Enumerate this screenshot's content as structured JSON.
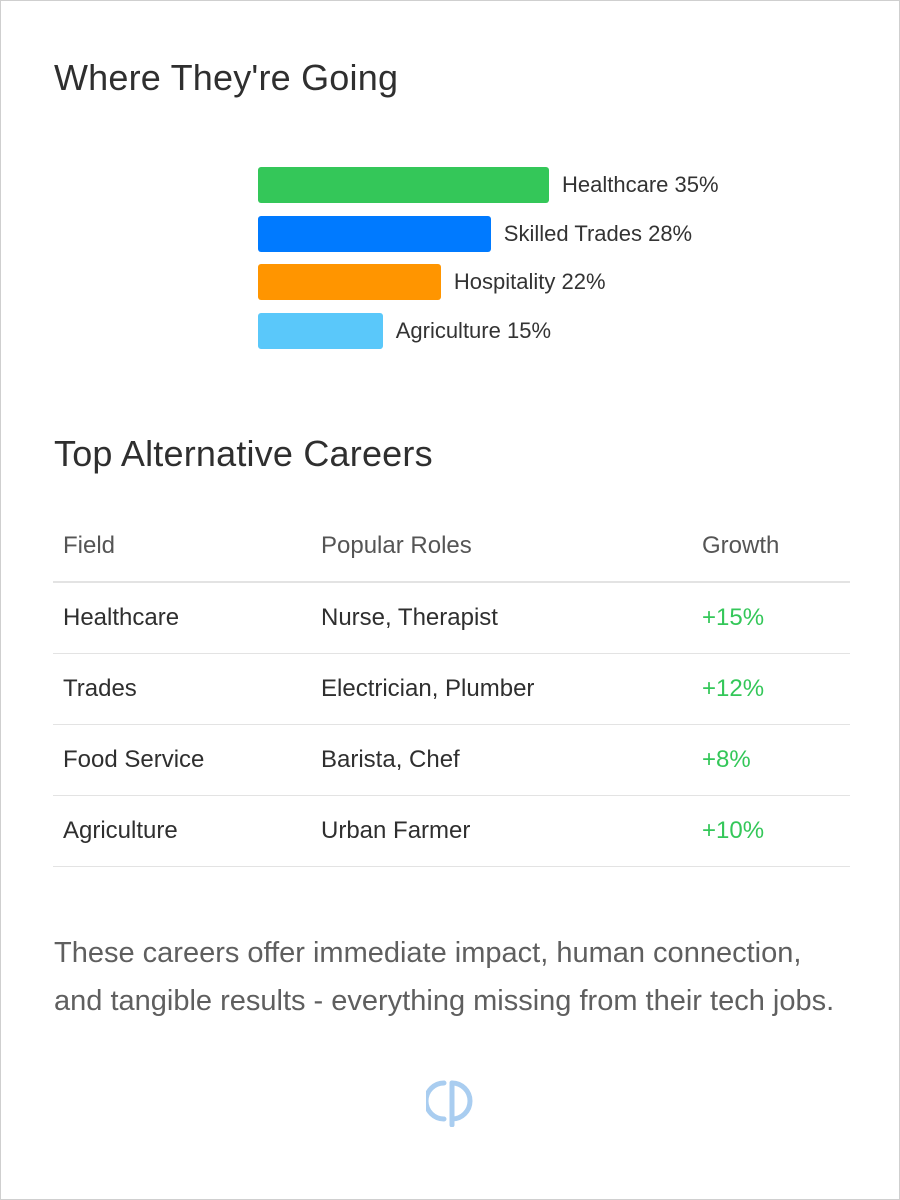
{
  "sections": {
    "destinations_title": "Where They're Going",
    "careers_title": "Top Alternative Careers"
  },
  "chart_data": {
    "type": "bar",
    "orientation": "horizontal",
    "title": "",
    "xlabel": "",
    "ylabel": "",
    "xlim": [
      0,
      35
    ],
    "grid": false,
    "categories": [
      "Healthcare",
      "Skilled Trades",
      "Hospitality",
      "Agriculture"
    ],
    "values": [
      35,
      28,
      22,
      15
    ],
    "labels": [
      "Healthcare 35%",
      "Skilled Trades 28%",
      "Hospitality 22%",
      "Agriculture 15%"
    ],
    "colors": [
      "#34c759",
      "#007aff",
      "#ff9500",
      "#5ac8fa"
    ]
  },
  "table": {
    "headers": [
      "Field",
      "Popular Roles",
      "Growth"
    ],
    "rows": [
      [
        "Healthcare",
        "Nurse, Therapist",
        "+15%"
      ],
      [
        "Trades",
        "Electrician, Plumber",
        "+12%"
      ],
      [
        "Food Service",
        "Barista, Chef",
        "+8%"
      ],
      [
        "Agriculture",
        "Urban Farmer",
        "+10%"
      ]
    ],
    "growth_color": "#34c759"
  },
  "summary": "These careers offer immediate impact, human connection, and tangible results - everything missing from their tech jobs.",
  "watermark_icon": "logo-mark-icon"
}
